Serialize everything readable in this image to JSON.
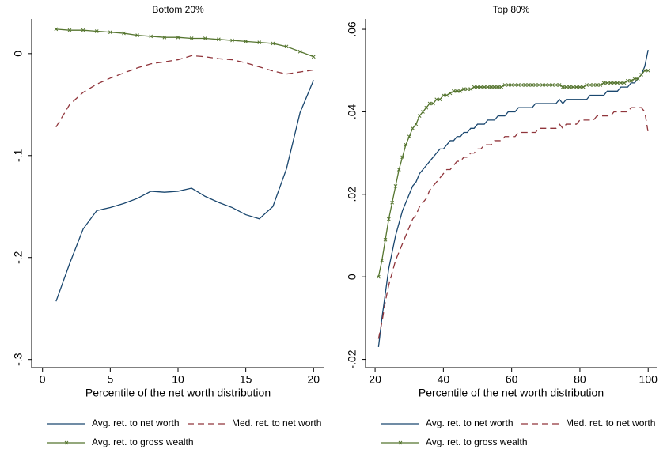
{
  "chart_data": [
    {
      "type": "line",
      "title": "Bottom 20%",
      "x_label": "Percentile of the net worth distribution",
      "x": [
        1,
        2,
        3,
        4,
        5,
        6,
        7,
        8,
        9,
        10,
        11,
        12,
        13,
        14,
        15,
        16,
        17,
        18,
        19,
        20
      ],
      "xlim": [
        -0.8,
        20.8
      ],
      "xticks": [
        0,
        5,
        10,
        15,
        20
      ],
      "ylim": [
        -0.308,
        0.034
      ],
      "yticks": [
        0,
        {
          "value": -0.1,
          "label": "-.1"
        },
        {
          "value": -0.2,
          "label": "-.2"
        },
        {
          "value": -0.3,
          "label": "-.3"
        }
      ],
      "grid": false,
      "series": [
        {
          "name": "Avg. ret. to net worth",
          "color": "#1a476f",
          "line_style": "solid",
          "values": [
            -0.243,
            -0.206,
            -0.172,
            -0.154,
            -0.151,
            -0.147,
            -0.142,
            -0.135,
            -0.136,
            -0.135,
            -0.132,
            -0.14,
            -0.146,
            -0.151,
            -0.158,
            -0.162,
            -0.15,
            -0.113,
            -0.058,
            -0.026
          ]
        },
        {
          "name": "Med. ret. to net worth",
          "color": "#90353b",
          "line_style": "dashed",
          "values": [
            -0.072,
            -0.05,
            -0.038,
            -0.03,
            -0.024,
            -0.019,
            -0.014,
            -0.01,
            -0.008,
            -0.006,
            -0.002,
            -0.003,
            -0.005,
            -0.006,
            -0.009,
            -0.013,
            -0.017,
            -0.02,
            -0.018,
            -0.016
          ]
        },
        {
          "name": "Avg. ret. to gross wealth",
          "color": "#55752f",
          "line_style": "solid",
          "marker": "x",
          "values": [
            0.024,
            0.023,
            0.023,
            0.022,
            0.021,
            0.02,
            0.018,
            0.017,
            0.016,
            0.016,
            0.015,
            0.015,
            0.014,
            0.013,
            0.012,
            0.011,
            0.01,
            0.007,
            0.002,
            -0.003
          ]
        }
      ]
    },
    {
      "type": "line",
      "title": "Top 80%",
      "x_label": "Percentile of the net worth distribution",
      "x": [
        21,
        22,
        23,
        24,
        25,
        26,
        27,
        28,
        29,
        30,
        31,
        32,
        33,
        34,
        35,
        36,
        37,
        38,
        39,
        40,
        41,
        42,
        43,
        44,
        45,
        46,
        47,
        48,
        49,
        50,
        51,
        52,
        53,
        54,
        55,
        56,
        57,
        58,
        59,
        60,
        61,
        62,
        63,
        64,
        65,
        66,
        67,
        68,
        69,
        70,
        71,
        72,
        73,
        74,
        75,
        76,
        77,
        78,
        79,
        80,
        81,
        82,
        83,
        84,
        85,
        86,
        87,
        88,
        89,
        90,
        91,
        92,
        93,
        94,
        95,
        96,
        97,
        98,
        99,
        100
      ],
      "xlim": [
        17.2,
        102.5
      ],
      "xticks": [
        20,
        40,
        60,
        80,
        100
      ],
      "ylim": [
        -0.022,
        0.0625
      ],
      "yticks": [
        {
          "value": -0.02,
          "label": "-.02"
        },
        0,
        {
          "value": 0.02,
          "label": ".02"
        },
        {
          "value": 0.04,
          "label": ".04"
        },
        {
          "value": 0.06,
          "label": ".06"
        }
      ],
      "grid": false,
      "series": [
        {
          "name": "Avg. ret. to net worth",
          "color": "#1a476f",
          "line_style": "solid",
          "values": [
            -0.017,
            -0.01,
            -0.004,
            0.002,
            0.006,
            0.01,
            0.013,
            0.016,
            0.018,
            0.02,
            0.022,
            0.023,
            0.025,
            0.026,
            0.027,
            0.028,
            0.029,
            0.03,
            0.031,
            0.031,
            0.032,
            0.033,
            0.033,
            0.034,
            0.034,
            0.035,
            0.035,
            0.036,
            0.036,
            0.037,
            0.037,
            0.037,
            0.038,
            0.038,
            0.038,
            0.039,
            0.039,
            0.039,
            0.04,
            0.04,
            0.04,
            0.041,
            0.041,
            0.041,
            0.041,
            0.041,
            0.042,
            0.042,
            0.042,
            0.042,
            0.042,
            0.042,
            0.042,
            0.043,
            0.042,
            0.043,
            0.043,
            0.043,
            0.043,
            0.043,
            0.043,
            0.043,
            0.044,
            0.044,
            0.044,
            0.044,
            0.044,
            0.045,
            0.045,
            0.045,
            0.045,
            0.046,
            0.046,
            0.046,
            0.047,
            0.047,
            0.048,
            0.049,
            0.051,
            0.055
          ]
        },
        {
          "name": "Med. ret. to net worth",
          "color": "#90353b",
          "line_style": "dashed",
          "values": [
            -0.015,
            -0.011,
            -0.006,
            -0.002,
            0.001,
            0.004,
            0.006,
            0.008,
            0.01,
            0.012,
            0.014,
            0.015,
            0.017,
            0.018,
            0.019,
            0.021,
            0.022,
            0.023,
            0.024,
            0.025,
            0.026,
            0.026,
            0.027,
            0.028,
            0.028,
            0.029,
            0.029,
            0.03,
            0.03,
            0.031,
            0.031,
            0.032,
            0.032,
            0.032,
            0.033,
            0.033,
            0.033,
            0.034,
            0.034,
            0.034,
            0.034,
            0.035,
            0.035,
            0.035,
            0.035,
            0.035,
            0.035,
            0.036,
            0.036,
            0.036,
            0.036,
            0.036,
            0.036,
            0.037,
            0.036,
            0.037,
            0.037,
            0.037,
            0.037,
            0.038,
            0.038,
            0.038,
            0.038,
            0.038,
            0.039,
            0.039,
            0.039,
            0.039,
            0.039,
            0.04,
            0.04,
            0.04,
            0.04,
            0.04,
            0.041,
            0.041,
            0.041,
            0.041,
            0.04,
            0.035
          ]
        },
        {
          "name": "Avg. ret. to gross wealth",
          "color": "#55752f",
          "line_style": "solid",
          "marker": "x",
          "values": [
            0.0,
            0.004,
            0.009,
            0.014,
            0.018,
            0.022,
            0.026,
            0.029,
            0.032,
            0.034,
            0.036,
            0.037,
            0.039,
            0.04,
            0.041,
            0.042,
            0.042,
            0.043,
            0.043,
            0.044,
            0.044,
            0.0445,
            0.045,
            0.045,
            0.045,
            0.0455,
            0.0455,
            0.0455,
            0.046,
            0.046,
            0.046,
            0.046,
            0.046,
            0.046,
            0.046,
            0.046,
            0.046,
            0.0465,
            0.0465,
            0.0465,
            0.0465,
            0.0465,
            0.0465,
            0.0465,
            0.0465,
            0.0465,
            0.0465,
            0.0465,
            0.0465,
            0.0465,
            0.0465,
            0.0465,
            0.0465,
            0.0465,
            0.046,
            0.046,
            0.046,
            0.046,
            0.046,
            0.046,
            0.046,
            0.0465,
            0.0465,
            0.0465,
            0.0465,
            0.0465,
            0.047,
            0.047,
            0.047,
            0.047,
            0.047,
            0.047,
            0.047,
            0.0475,
            0.0475,
            0.048,
            0.048,
            0.049,
            0.05,
            0.05
          ]
        }
      ]
    }
  ]
}
